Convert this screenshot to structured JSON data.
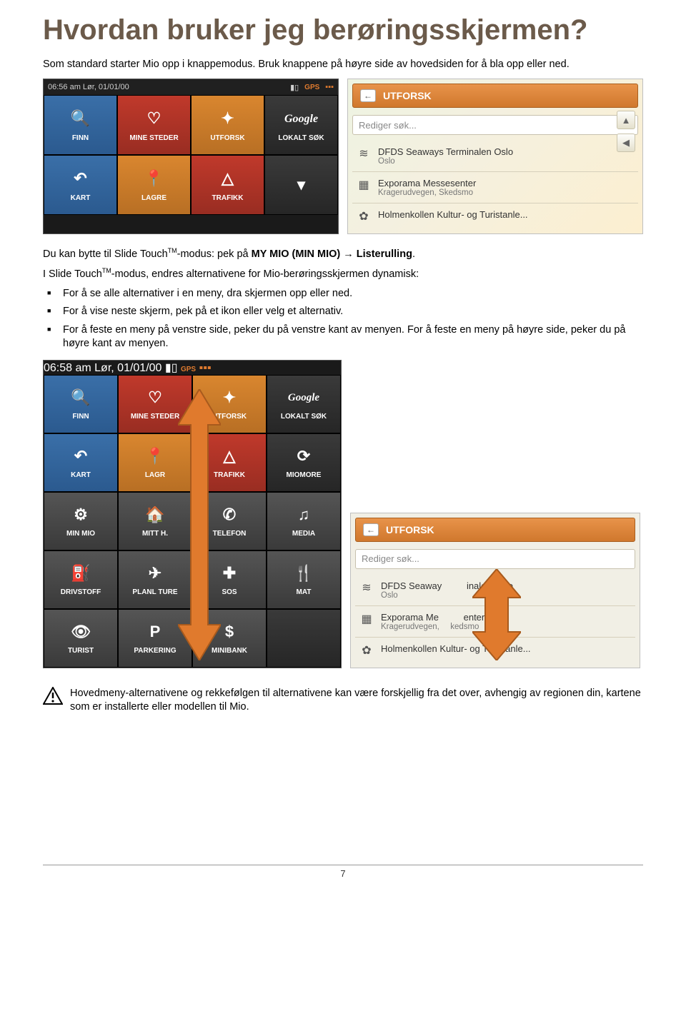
{
  "heading": "Hvordan bruker jeg berøringsskjermen?",
  "intro": "Som standard starter Mio opp i knappemodus. Bruk knappene på høyre side av hovedsiden for å bla opp eller ned.",
  "para_switch_prefix": "Du kan bytte til Slide Touch",
  "para_switch_tm": "TM",
  "para_switch_mid": "-modus: pek på ",
  "para_switch_bold": "MY MIO (MIN MIO)",
  "para_switch_arrow": " → ",
  "para_switch_bold2": "Listerulling",
  "para_switch_end": ".",
  "para_dyn_prefix": "I Slide Touch",
  "para_dyn_rest": "-modus, endres alternativene for Mio-berøringsskjermen dynamisk:",
  "bullet1": "For å se alle alternativer i en meny, dra skjermen opp eller ned.",
  "bullet2": "For å vise neste skjerm, pek på et ikon eller velg et alternativ.",
  "bullet3": "For å feste en meny på venstre side, peker du på venstre kant av menyen. For å feste en meny på høyre side, peker du på høyre kant av menyen.",
  "note_text": "Hovedmeny-alternativene og rekkefølgen til alternativene kan være forskjellig fra det over, avhengig av regionen din, kartene som er installerte eller modellen til Mio.",
  "page_number": "7",
  "device1": {
    "time": "06:56 am Lør, 01/01/00",
    "gps": "GPS",
    "tiles": [
      {
        "label": "FINN",
        "color": "tile-blue",
        "icon": "🔍"
      },
      {
        "label": "MINE STEDER",
        "color": "tile-red",
        "icon": "♡"
      },
      {
        "label": "UTFORSK",
        "color": "tile-orange",
        "icon": "✦"
      },
      {
        "label": "LOKALT SØK",
        "color": "tile-dark",
        "icon": "G",
        "isGoogle": true
      },
      {
        "label": "KART",
        "color": "tile-blue",
        "icon": "↶"
      },
      {
        "label": "LAGRE",
        "color": "tile-orange",
        "icon": "📍"
      },
      {
        "label": "TRAFIKK",
        "color": "tile-red",
        "icon": "△"
      },
      {
        "label": "",
        "color": "tile-dark",
        "icon": "▾",
        "isChevron": true
      }
    ]
  },
  "utforsk1": {
    "title": "UTFORSK",
    "search": "Rediger søk...",
    "items": [
      {
        "icon": "≋",
        "main": "DFDS Seaways Terminalen Oslo",
        "sub": "Oslo"
      },
      {
        "icon": "▦",
        "main": "Exporama Messesenter",
        "sub": "Kragerudvegen, Skedsmo"
      },
      {
        "icon": "✿",
        "main": "Holmenkollen Kultur- og Turistanle...",
        "sub": ""
      }
    ]
  },
  "device2": {
    "time": "06:58 am Lør, 01/01/00",
    "gps": "GPS",
    "tiles": [
      {
        "label": "FINN",
        "color": "tile-blue",
        "icon": "🔍"
      },
      {
        "label": "MINE STEDER",
        "color": "tile-red",
        "icon": "♡"
      },
      {
        "label": "UTFORSK",
        "color": "tile-orange",
        "icon": "✦"
      },
      {
        "label": "LOKALT SØK",
        "color": "tile-dark",
        "icon": "G",
        "isGoogle": true
      },
      {
        "label": "KART",
        "color": "tile-blue",
        "icon": "↶"
      },
      {
        "label": "LAGR",
        "color": "tile-orange",
        "icon": "📍"
      },
      {
        "label": "TRAFIKK",
        "color": "tile-red",
        "icon": "△"
      },
      {
        "label": "MIOMORE",
        "color": "tile-dark",
        "icon": "⟳"
      },
      {
        "label": "MIN MIO",
        "color": "tile-gray",
        "icon": "⚙"
      },
      {
        "label": "MITT H.",
        "color": "tile-gray",
        "icon": "🏠"
      },
      {
        "label": "TELEFON",
        "color": "tile-gray",
        "icon": "✆"
      },
      {
        "label": "MEDIA",
        "color": "tile-gray",
        "icon": "♫"
      },
      {
        "label": "DRIVSTOFF",
        "color": "tile-gray",
        "icon": "⛽"
      },
      {
        "label": "PLANL TURE",
        "color": "tile-gray",
        "icon": "✈"
      },
      {
        "label": "SOS",
        "color": "tile-gray",
        "icon": "✚"
      },
      {
        "label": "MAT",
        "color": "tile-gray",
        "icon": "🍴"
      },
      {
        "label": "TURIST",
        "color": "tile-gray",
        "icon": "👁"
      },
      {
        "label": "PARKERING",
        "color": "tile-gray",
        "icon": "P"
      },
      {
        "label": "MINIBANK",
        "color": "tile-gray",
        "icon": "$"
      }
    ]
  },
  "utforsk2": {
    "title": "UTFORSK",
    "search": "Rediger søk...",
    "items": [
      {
        "icon": "≋",
        "main_l": "DFDS Seaway",
        "main_r": "inalen Oslo",
        "sub": "Oslo"
      },
      {
        "icon": "▦",
        "main_l": "Exporama Me",
        "main_r": "enter",
        "sub_l": "Kragerudvegen,",
        "sub_r": "kedsmo"
      },
      {
        "icon": "✿",
        "main": "Holmenkollen Kultur- og Turistanle...",
        "sub": ""
      }
    ]
  },
  "colors": {
    "heading": "#6b5a4a",
    "tile_blue": "#2b5a8f",
    "tile_red": "#992d22",
    "tile_orange": "#b86f24",
    "tile_dark": "#262626",
    "tile_gray": "#3a3a3a",
    "utforsk_header": "#d0782d",
    "arrow_orange": "#e07a2d"
  }
}
